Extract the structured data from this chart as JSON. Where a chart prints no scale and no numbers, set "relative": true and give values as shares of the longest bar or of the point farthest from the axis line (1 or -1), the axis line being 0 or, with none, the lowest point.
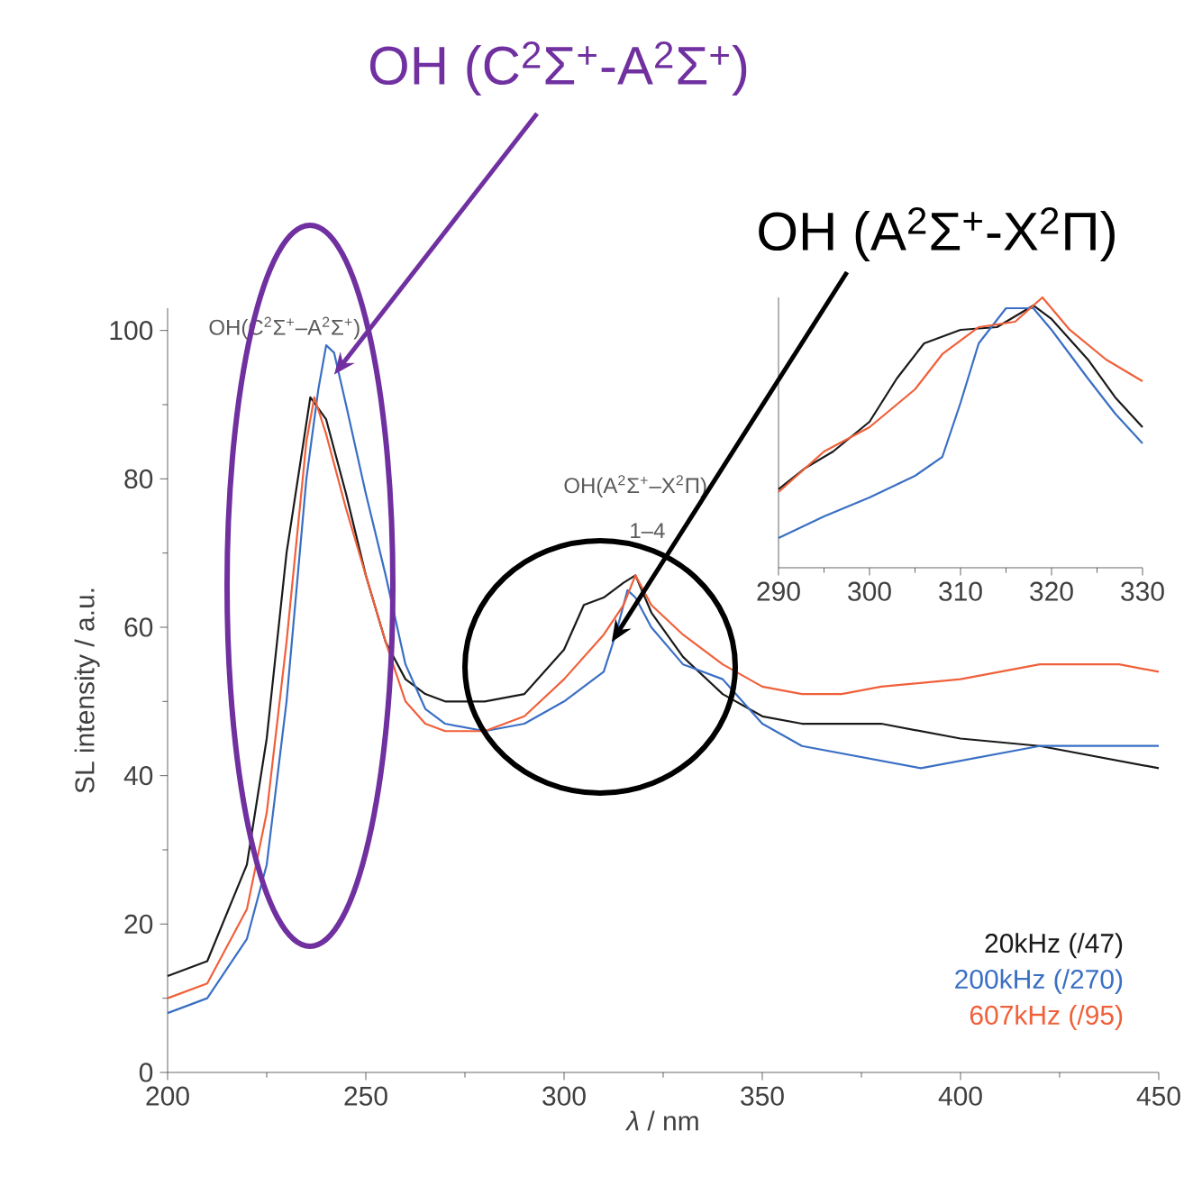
{
  "chart_data": [
    {
      "type": "line",
      "xlabel": "*λ* / nm",
      "ylabel": "SL intensity / a.u.",
      "xlim": [
        200,
        450
      ],
      "ylim": [
        0,
        103
      ],
      "xticks": [
        200,
        250,
        300,
        350,
        400,
        450
      ],
      "yticks": [
        0,
        20,
        40,
        60,
        80,
        100
      ],
      "grid": false,
      "series": [
        {
          "name": "20kHz (/47)",
          "color": "#1a1a1a",
          "x": [
            200,
            210,
            220,
            225,
            230,
            236,
            240,
            245,
            250,
            255,
            260,
            265,
            270,
            280,
            290,
            300,
            305,
            310,
            315,
            318,
            322,
            330,
            340,
            350,
            360,
            380,
            400,
            420,
            440,
            450
          ],
          "values": [
            13,
            15,
            28,
            45,
            70,
            91,
            88,
            78,
            67,
            58,
            53,
            51,
            50,
            50,
            51,
            57,
            63,
            64,
            66,
            67,
            62,
            56,
            51,
            48,
            47,
            47,
            45,
            44,
            42,
            41
          ]
        },
        {
          "name": "200kHz (/270)",
          "color": "#3a6fc4",
          "x": [
            200,
            210,
            220,
            225,
            230,
            235,
            238,
            240,
            242,
            245,
            250,
            255,
            260,
            265,
            270,
            280,
            290,
            300,
            310,
            313,
            316,
            318,
            322,
            330,
            340,
            350,
            360,
            380,
            390,
            400,
            420,
            450
          ],
          "values": [
            8,
            10,
            18,
            28,
            50,
            80,
            92,
            98,
            97,
            90,
            78,
            67,
            55,
            49,
            47,
            46,
            47,
            50,
            54,
            59,
            65,
            64,
            60,
            55,
            53,
            47,
            44,
            42,
            41,
            42,
            44,
            44
          ]
        },
        {
          "name": "607kHz (/95)",
          "color": "#f0603a",
          "x": [
            200,
            210,
            220,
            225,
            230,
            235,
            237,
            240,
            245,
            250,
            255,
            260,
            265,
            270,
            280,
            290,
            300,
            310,
            315,
            318,
            322,
            330,
            340,
            350,
            360,
            370,
            380,
            400,
            420,
            440,
            450
          ],
          "values": [
            10,
            12,
            22,
            35,
            58,
            85,
            91,
            86,
            76,
            67,
            58,
            50,
            47,
            46,
            46,
            48,
            53,
            59,
            63,
            67,
            63,
            59,
            55,
            52,
            51,
            51,
            52,
            53,
            55,
            55,
            54
          ]
        }
      ],
      "annotations": [
        "OH(C$^{2}$Σ$^{+}$–A$^{2}$Σ$^{+}$)",
        "OH(A$^{2}$Σ$^{+}$–X$^{2}$Π)",
        "1–4",
        "OH (C$^{2}$Σ$^{+}$-A$^{2}$Σ$^{+}$)",
        "OH (A$^{2}$Σ$^{+}$-X$^{2}$Π)"
      ]
    },
    {
      "type": "line",
      "relative": true,
      "xlim": [
        290,
        330
      ],
      "xticks": [
        290,
        300,
        310,
        320,
        330
      ],
      "series": [
        {
          "color": "#1a1a1a",
          "x": [
            290,
            293,
            296,
            300,
            303,
            306,
            310,
            314,
            318,
            320,
            324,
            327,
            330
          ],
          "values": [
            0.29,
            0.37,
            0.43,
            0.54,
            0.7,
            0.83,
            0.88,
            0.89,
            0.97,
            0.92,
            0.77,
            0.63,
            0.52
          ]
        },
        {
          "color": "#3a6fc4",
          "x": [
            290,
            295,
            300,
            305,
            308,
            310,
            312,
            315,
            318,
            320,
            324,
            327,
            330
          ],
          "values": [
            0.11,
            0.19,
            0.26,
            0.34,
            0.41,
            0.61,
            0.83,
            0.96,
            0.96,
            0.88,
            0.7,
            0.57,
            0.46
          ]
        },
        {
          "color": "#f0603a",
          "x": [
            290,
            295,
            300,
            305,
            308,
            312,
            316,
            319,
            322,
            326,
            330
          ],
          "values": [
            0.28,
            0.43,
            0.52,
            0.66,
            0.79,
            0.89,
            0.91,
            1.0,
            0.88,
            0.77,
            0.69
          ]
        }
      ]
    }
  ]
}
